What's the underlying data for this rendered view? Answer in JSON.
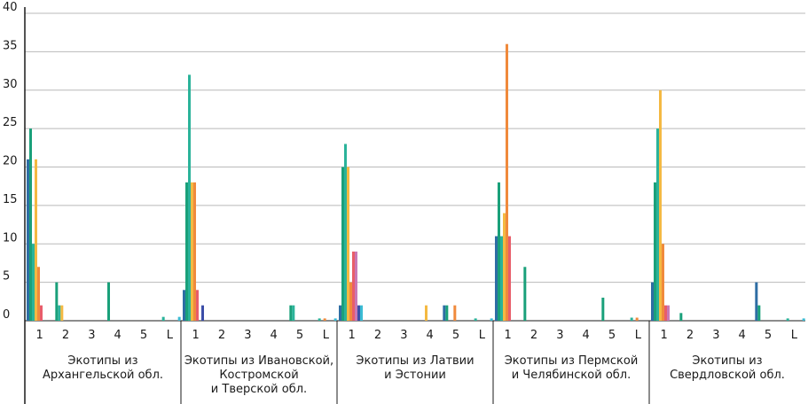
{
  "chart_data": {
    "type": "bar",
    "title": "",
    "xlabel": "",
    "ylabel": "",
    "ylim": [
      0,
      40
    ],
    "yticks": [
      "0",
      "5",
      "10",
      "15",
      "20",
      "25",
      "30",
      "35",
      "40"
    ],
    "grid": true,
    "legend": "none",
    "series_colors": [
      "#2e6da4",
      "#1aa07a",
      "#2bb39a",
      "#f4b942",
      "#f08a3c",
      "#e85d6a",
      "#c978b5",
      "#3c4ea8",
      "#3bbcd4"
    ],
    "groups": [
      {
        "label_lines": [
          "Экотипы из",
          "Архангельской обл."
        ],
        "categories": [
          {
            "label": "1",
            "values": [
              21,
              25,
              10,
              21,
              7,
              2,
              0,
              0,
              0
            ]
          },
          {
            "label": "2",
            "values": [
              0,
              5,
              2,
              2,
              0,
              0,
              0,
              0,
              0
            ]
          },
          {
            "label": "3",
            "values": [
              0,
              0,
              0,
              0,
              0,
              0,
              0,
              0,
              0
            ]
          },
          {
            "label": "4",
            "values": [
              0,
              5,
              0,
              0,
              0,
              0,
              0,
              0,
              0
            ]
          },
          {
            "label": "5",
            "values": [
              0,
              0,
              0,
              0,
              0,
              0,
              0,
              0,
              0
            ]
          },
          {
            "label": "L",
            "values": [
              0,
              0,
              0.5,
              0,
              0,
              0,
              0,
              0,
              0.5
            ]
          }
        ]
      },
      {
        "label_lines": [
          "Экотипы из Ивановской,",
          "Костромской",
          "и Тверской обл."
        ],
        "categories": [
          {
            "label": "1",
            "values": [
              4,
              18,
              32,
              18,
              18,
              4,
              0,
              2,
              0
            ]
          },
          {
            "label": "2",
            "values": [
              0,
              0,
              0,
              0,
              0,
              0,
              0,
              0,
              0
            ]
          },
          {
            "label": "3",
            "values": [
              0,
              0,
              0,
              0,
              0,
              0,
              0,
              0,
              0
            ]
          },
          {
            "label": "4",
            "values": [
              0,
              0,
              0,
              0,
              0,
              0,
              0,
              0,
              0
            ]
          },
          {
            "label": "5",
            "values": [
              0,
              2,
              2,
              0,
              0,
              0,
              0,
              0,
              0
            ]
          },
          {
            "label": "L",
            "values": [
              0,
              0,
              0.3,
              0,
              0.3,
              0,
              0,
              0,
              0.3
            ]
          }
        ]
      },
      {
        "label_lines": [
          "Экотипы из Латвии",
          "и Эстонии"
        ],
        "categories": [
          {
            "label": "1",
            "values": [
              2,
              20,
              23,
              20,
              5,
              9,
              9,
              2,
              2
            ]
          },
          {
            "label": "2",
            "values": [
              0,
              0,
              0,
              0,
              0,
              0,
              0,
              0,
              0
            ]
          },
          {
            "label": "3",
            "values": [
              0,
              0,
              0,
              0,
              0,
              0,
              0,
              0,
              0
            ]
          },
          {
            "label": "4",
            "values": [
              0,
              0,
              0,
              2,
              0,
              0,
              0,
              0,
              0
            ]
          },
          {
            "label": "5",
            "values": [
              2,
              2,
              0,
              0,
              2,
              0,
              0,
              0,
              0
            ]
          },
          {
            "label": "L",
            "values": [
              0,
              0,
              0.3,
              0,
              0,
              0,
              0,
              0,
              0.3
            ]
          }
        ]
      },
      {
        "label_lines": [
          "Экотипы из Пермской",
          "и Челябинской обл."
        ],
        "categories": [
          {
            "label": "1",
            "values": [
              11,
              18,
              11,
              14,
              36,
              11,
              0,
              0,
              0
            ]
          },
          {
            "label": "2",
            "values": [
              0,
              7,
              0,
              0,
              0,
              0,
              0,
              0,
              0
            ]
          },
          {
            "label": "3",
            "values": [
              0,
              0,
              0,
              0,
              0,
              0,
              0,
              0,
              0
            ]
          },
          {
            "label": "4",
            "values": [
              0,
              0,
              0,
              0,
              0,
              0,
              0,
              0,
              0
            ]
          },
          {
            "label": "5",
            "values": [
              0,
              3,
              0,
              0,
              0,
              0,
              0,
              0,
              0
            ]
          },
          {
            "label": "L",
            "values": [
              0,
              0,
              0.4,
              0,
              0.4,
              0,
              0,
              0,
              0
            ]
          }
        ]
      },
      {
        "label_lines": [
          "Экотипы из",
          "Свердловской обл."
        ],
        "categories": [
          {
            "label": "1",
            "values": [
              5,
              18,
              25,
              30,
              10,
              2,
              2,
              0,
              0
            ]
          },
          {
            "label": "2",
            "values": [
              0,
              1,
              0,
              0,
              0,
              0,
              0,
              0,
              0
            ]
          },
          {
            "label": "3",
            "values": [
              0,
              0,
              0,
              0,
              0,
              0,
              0,
              0,
              0
            ]
          },
          {
            "label": "4",
            "values": [
              0,
              0,
              0,
              0,
              0,
              0,
              0,
              0,
              0
            ]
          },
          {
            "label": "5",
            "values": [
              5,
              2,
              0,
              0,
              0,
              0,
              0,
              0,
              0
            ]
          },
          {
            "label": "L",
            "values": [
              0,
              0,
              0.3,
              0,
              0,
              0,
              0,
              0,
              0.3
            ]
          }
        ]
      }
    ]
  }
}
